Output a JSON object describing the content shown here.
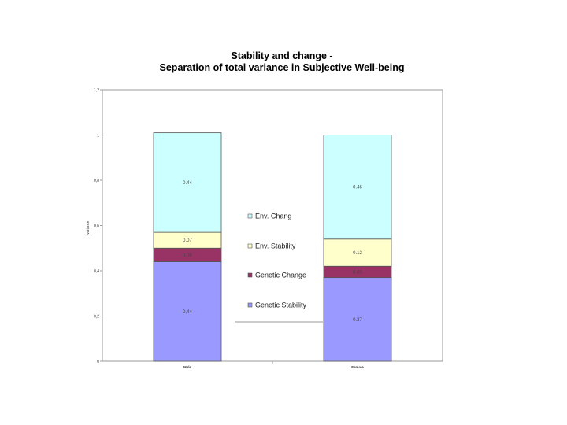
{
  "chart_data": {
    "type": "bar",
    "stacked": true,
    "title": "Stability and change -",
    "subtitle": "Separation of total variance in Subjective Well-being",
    "ylabel": "Variance",
    "xlabel": "",
    "categories": [
      "Male",
      "Female"
    ],
    "ylim": [
      0,
      1.2
    ],
    "yticks": [
      0,
      0.2,
      0.4,
      0.6,
      0.8,
      1,
      1.2
    ],
    "ytick_labels": [
      "0",
      "0,2",
      "0,4",
      "0,6",
      "0,8",
      "1",
      "1,2"
    ],
    "grid": false,
    "legend_position": "center",
    "series": [
      {
        "name": "Genetic Stability",
        "values": [
          0.44,
          0.37
        ],
        "labels": [
          "0,44",
          "0.37"
        ],
        "color": "#9999ff"
      },
      {
        "name": "Genetic Change",
        "values": [
          0.06,
          0.05
        ],
        "labels": [
          "0,06",
          "0.05"
        ],
        "color": "#993366"
      },
      {
        "name": "Env. Stability",
        "values": [
          0.07,
          0.12
        ],
        "labels": [
          "0,07",
          "0.12"
        ],
        "color": "#ffffcc"
      },
      {
        "name": "Env. Chang",
        "values": [
          0.44,
          0.46
        ],
        "labels": [
          "0.44",
          "0.46"
        ],
        "color": "#ccffff"
      }
    ]
  }
}
